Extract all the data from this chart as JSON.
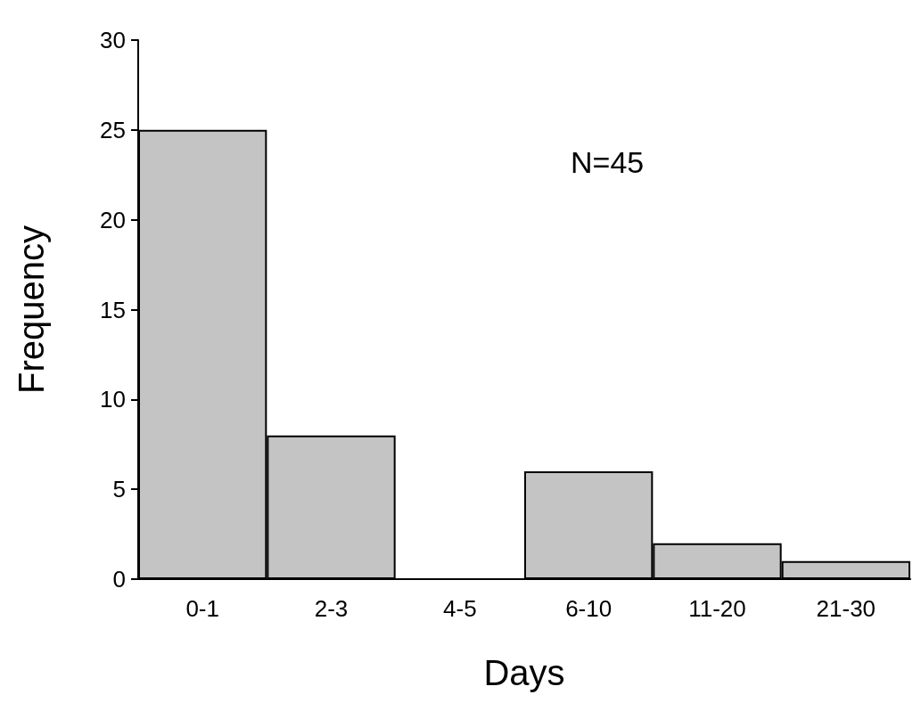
{
  "chart_data": {
    "type": "bar",
    "xlabel": "Days",
    "ylabel": "Frequency",
    "categories": [
      "0-1",
      "2-3",
      "4-5",
      "6-10",
      "11-20",
      "21-30"
    ],
    "values": [
      25,
      8,
      0,
      6,
      2,
      1
    ],
    "color": "#c4c4c4",
    "ylim": [
      0,
      30
    ],
    "yticks": [
      0,
      5,
      10,
      15,
      20,
      25,
      30
    ],
    "grid": false,
    "annotations": [
      "N=45"
    ]
  }
}
